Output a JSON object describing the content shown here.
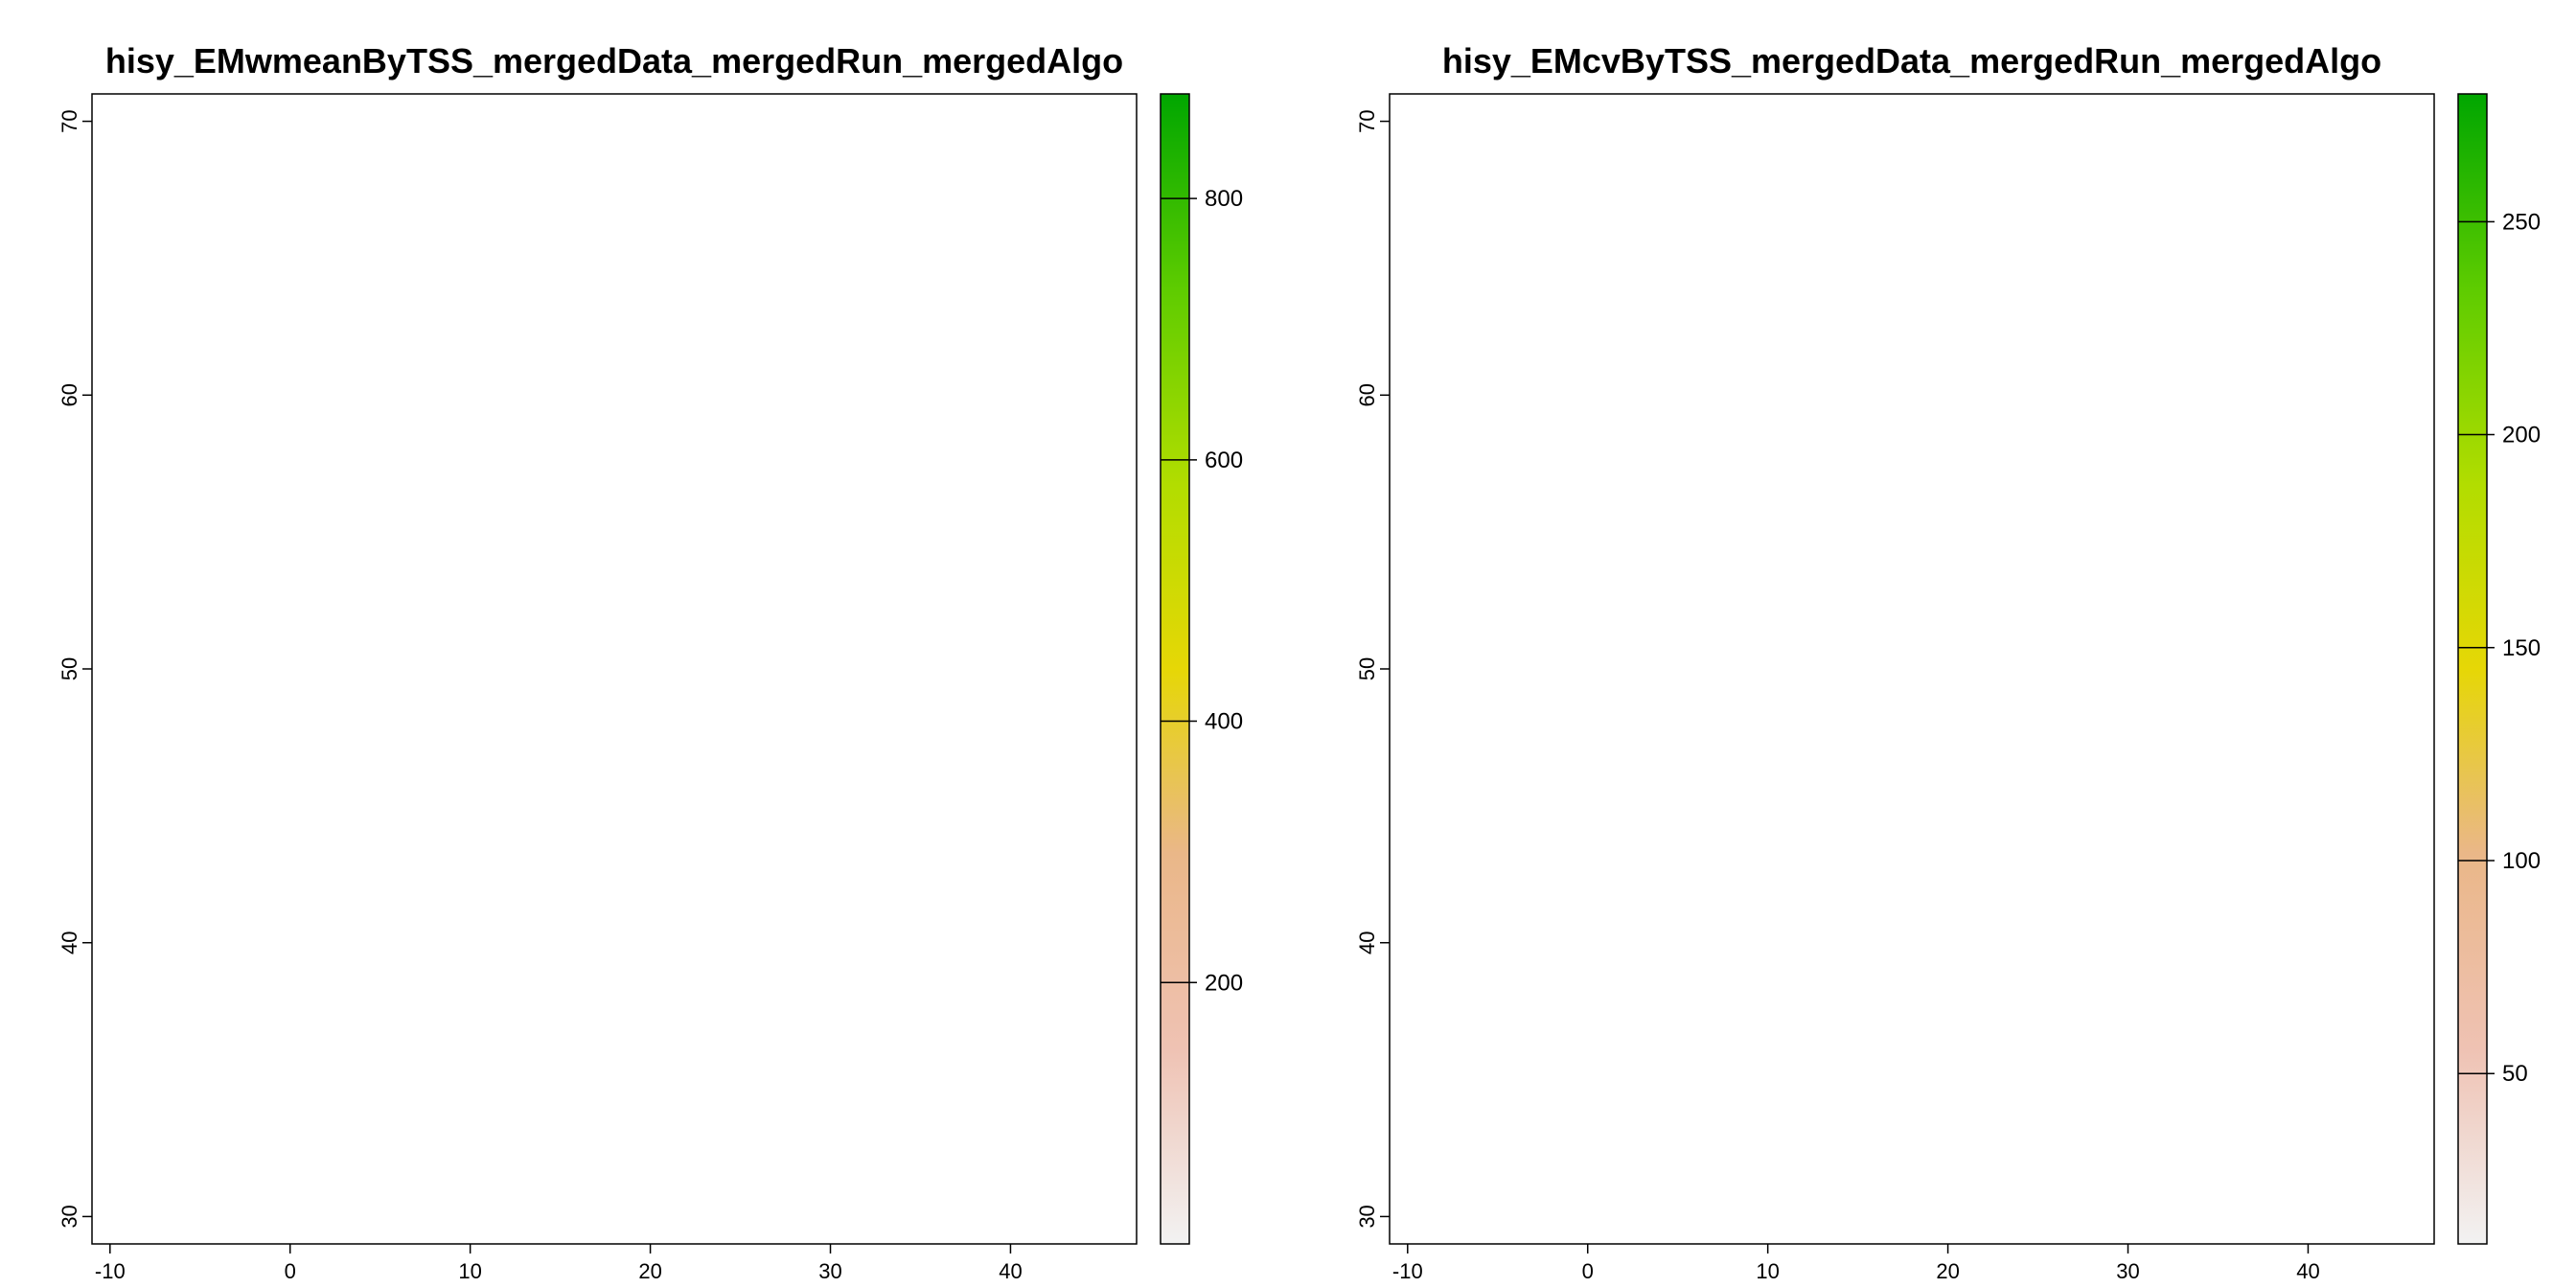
{
  "colors": {
    "ramp": [
      "#f2f2f2",
      "#efc2b3",
      "#eab788",
      "#e6d706",
      "#b2dd00",
      "#5ecc00",
      "#00a600"
    ],
    "sea": "#ffffff"
  },
  "maps": [
    {
      "id": "left",
      "title": "hisy_EMwmeanByTSS_mergedData_mergedRun_mergedAlgo",
      "x_ticks": [
        "-10",
        "0",
        "10",
        "20",
        "30",
        "40"
      ],
      "y_ticks": [
        "30",
        "40",
        "50",
        "60",
        "70"
      ],
      "xlim": [
        -11,
        47
      ],
      "ylim": [
        29,
        71
      ],
      "colorbar": {
        "min": 0,
        "max": 880,
        "ticks": [
          "200",
          "400",
          "600",
          "800"
        ]
      }
    },
    {
      "id": "right",
      "title": "hisy_EMcvByTSS_mergedData_mergedRun_mergedAlgo",
      "x_ticks": [
        "-10",
        "0",
        "10",
        "20",
        "30",
        "40"
      ],
      "y_ticks": [
        "30",
        "40",
        "50",
        "60",
        "70"
      ],
      "xlim": [
        -11,
        47
      ],
      "ylim": [
        29,
        71
      ],
      "colorbar": {
        "min": 10,
        "max": 280,
        "ticks": [
          "50",
          "100",
          "150",
          "200",
          "250"
        ]
      }
    }
  ]
}
